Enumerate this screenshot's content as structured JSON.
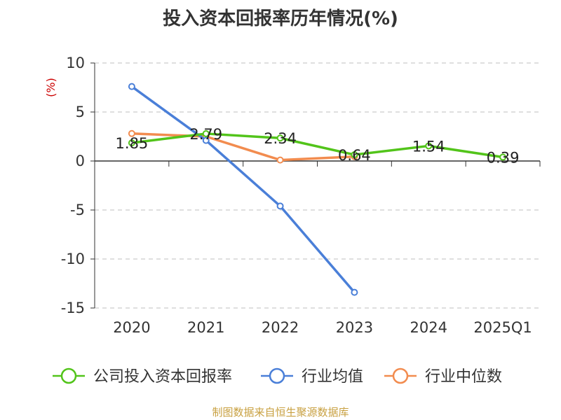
{
  "chart_data": {
    "type": "line",
    "title": "投入资本回报率历年情况(%)",
    "ylabel": "(%)",
    "categories": [
      "2020",
      "2021",
      "2022",
      "2023",
      "2024",
      "2025Q1"
    ],
    "ylim": [
      -15,
      10
    ],
    "yticks": [
      10,
      5,
      0,
      -5,
      -10,
      -15
    ],
    "grid": true,
    "legend_position": "bottom",
    "series": [
      {
        "name": "公司投入资本回报率",
        "color": "#52c41a",
        "values": [
          1.85,
          2.79,
          2.34,
          0.64,
          1.54,
          0.39
        ],
        "labels": [
          "1.85",
          "2.79",
          "2.34",
          "0.64",
          "1.54",
          "0.39"
        ]
      },
      {
        "name": "行业均值",
        "color": "#4a7fd8",
        "values": [
          7.6,
          2.1,
          -4.6,
          -13.4,
          null,
          null
        ]
      },
      {
        "name": "行业中位数",
        "color": "#f28c4f",
        "values": [
          2.8,
          2.5,
          0.1,
          0.45,
          null,
          null
        ]
      }
    ]
  },
  "source_note": "制图数据来自恒生聚源数据库"
}
